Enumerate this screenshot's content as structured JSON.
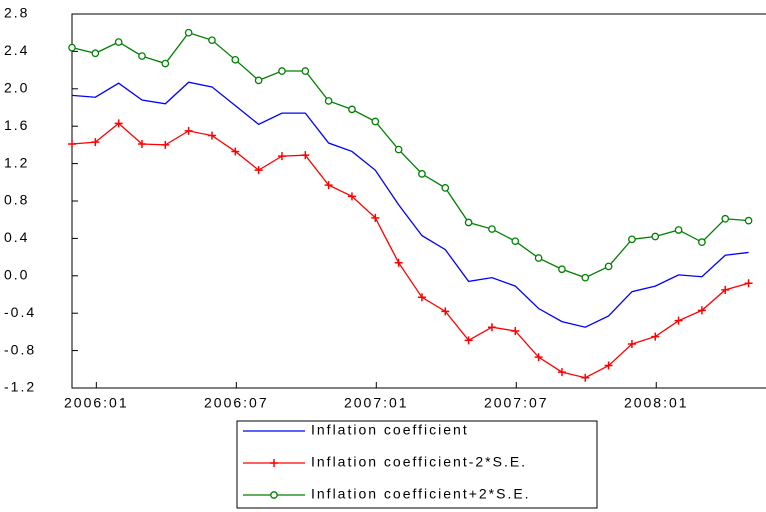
{
  "chart_data": {
    "type": "line",
    "categories": [
      null,
      "2006:01",
      null,
      null,
      null,
      null,
      null,
      "2006:07",
      null,
      null,
      null,
      null,
      null,
      "2007:01",
      null,
      null,
      null,
      null,
      null,
      "2007:07",
      null,
      null,
      null,
      null,
      null,
      "2008:01",
      null,
      null,
      null,
      null
    ],
    "ylim": [
      -1.2,
      2.8
    ],
    "yticks": [
      -1.2,
      -0.8,
      -0.4,
      {
        "value": 0,
        "label": "0.0"
      },
      0.4,
      0.8,
      1.2,
      1.6,
      {
        "value": 2,
        "label": "2.0"
      },
      2.4,
      2.8
    ],
    "series": [
      {
        "name": "Inflation coefficient",
        "color": "#0000ff",
        "values": [
          1.93,
          1.91,
          2.06,
          1.88,
          1.84,
          2.07,
          2.02,
          1.82,
          1.62,
          1.74,
          1.74,
          1.42,
          1.33,
          1.13,
          0.76,
          0.43,
          0.28,
          -0.06,
          -0.02,
          -0.11,
          -0.35,
          -0.49,
          -0.55,
          -0.43,
          -0.17,
          -0.11,
          0.01,
          -0.01,
          0.22,
          0.25
        ]
      },
      {
        "name": "Inflation coefficient-2*S.E.",
        "color": "#ff0000",
        "marker": "plus",
        "values": [
          1.41,
          1.43,
          1.63,
          1.41,
          1.4,
          1.55,
          1.5,
          1.33,
          1.13,
          1.28,
          1.29,
          0.97,
          0.85,
          0.62,
          0.14,
          -0.23,
          -0.38,
          -0.69,
          -0.55,
          -0.59,
          -0.87,
          -1.03,
          -1.09,
          -0.96,
          -0.73,
          -0.65,
          -0.48,
          -0.37,
          -0.15,
          -0.08
        ]
      },
      {
        "name": "Inflation coefficient+2*S.E.",
        "color": "#008000",
        "marker": "circle",
        "values": [
          2.44,
          2.38,
          2.5,
          2.35,
          2.27,
          2.6,
          2.52,
          2.31,
          2.09,
          2.19,
          2.19,
          1.87,
          1.78,
          1.65,
          1.35,
          1.09,
          0.94,
          0.57,
          0.5,
          0.37,
          0.19,
          0.07,
          -0.02,
          0.1,
          0.39,
          0.42,
          0.49,
          0.36,
          0.61,
          0.59
        ]
      }
    ]
  }
}
